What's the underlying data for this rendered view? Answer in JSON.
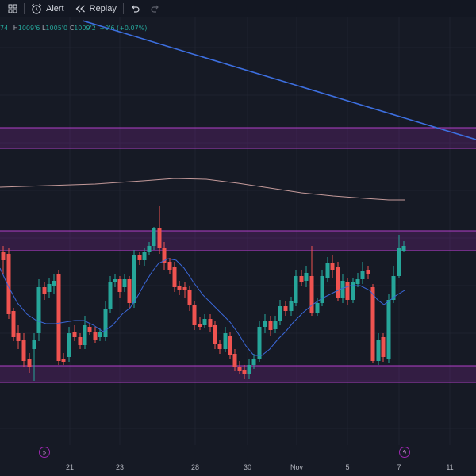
{
  "toolbar": {
    "alert_label": "Alert",
    "replay_label": "Replay"
  },
  "ohlc": {
    "o_value": "74",
    "h_label": "H",
    "h_value": "1009'6",
    "l_label": "L",
    "l_value": "1005'0",
    "c_label": "C",
    "c_value": "1009'2",
    "change": "+0'6 (+0.07%)"
  },
  "x_axis": {
    "labels": [
      "21",
      "23",
      "28",
      "30",
      "Nov",
      "5",
      "7",
      "11"
    ]
  },
  "colors": {
    "background": "#161a25",
    "up": "#26a69a",
    "down": "#ef5350",
    "zone": "#9c27b0",
    "trendline": "#3d6fe0",
    "ma_fast": "#3a67d8",
    "ma_slow": "#c49a9a"
  },
  "icons": {
    "layout": "grid-icon",
    "alert": "alarm-clock-icon",
    "replay": "rewind-icon",
    "undo": "undo-icon",
    "redo": "redo-icon",
    "navigate": "navigate-icon",
    "event": "lightning-icon"
  }
}
